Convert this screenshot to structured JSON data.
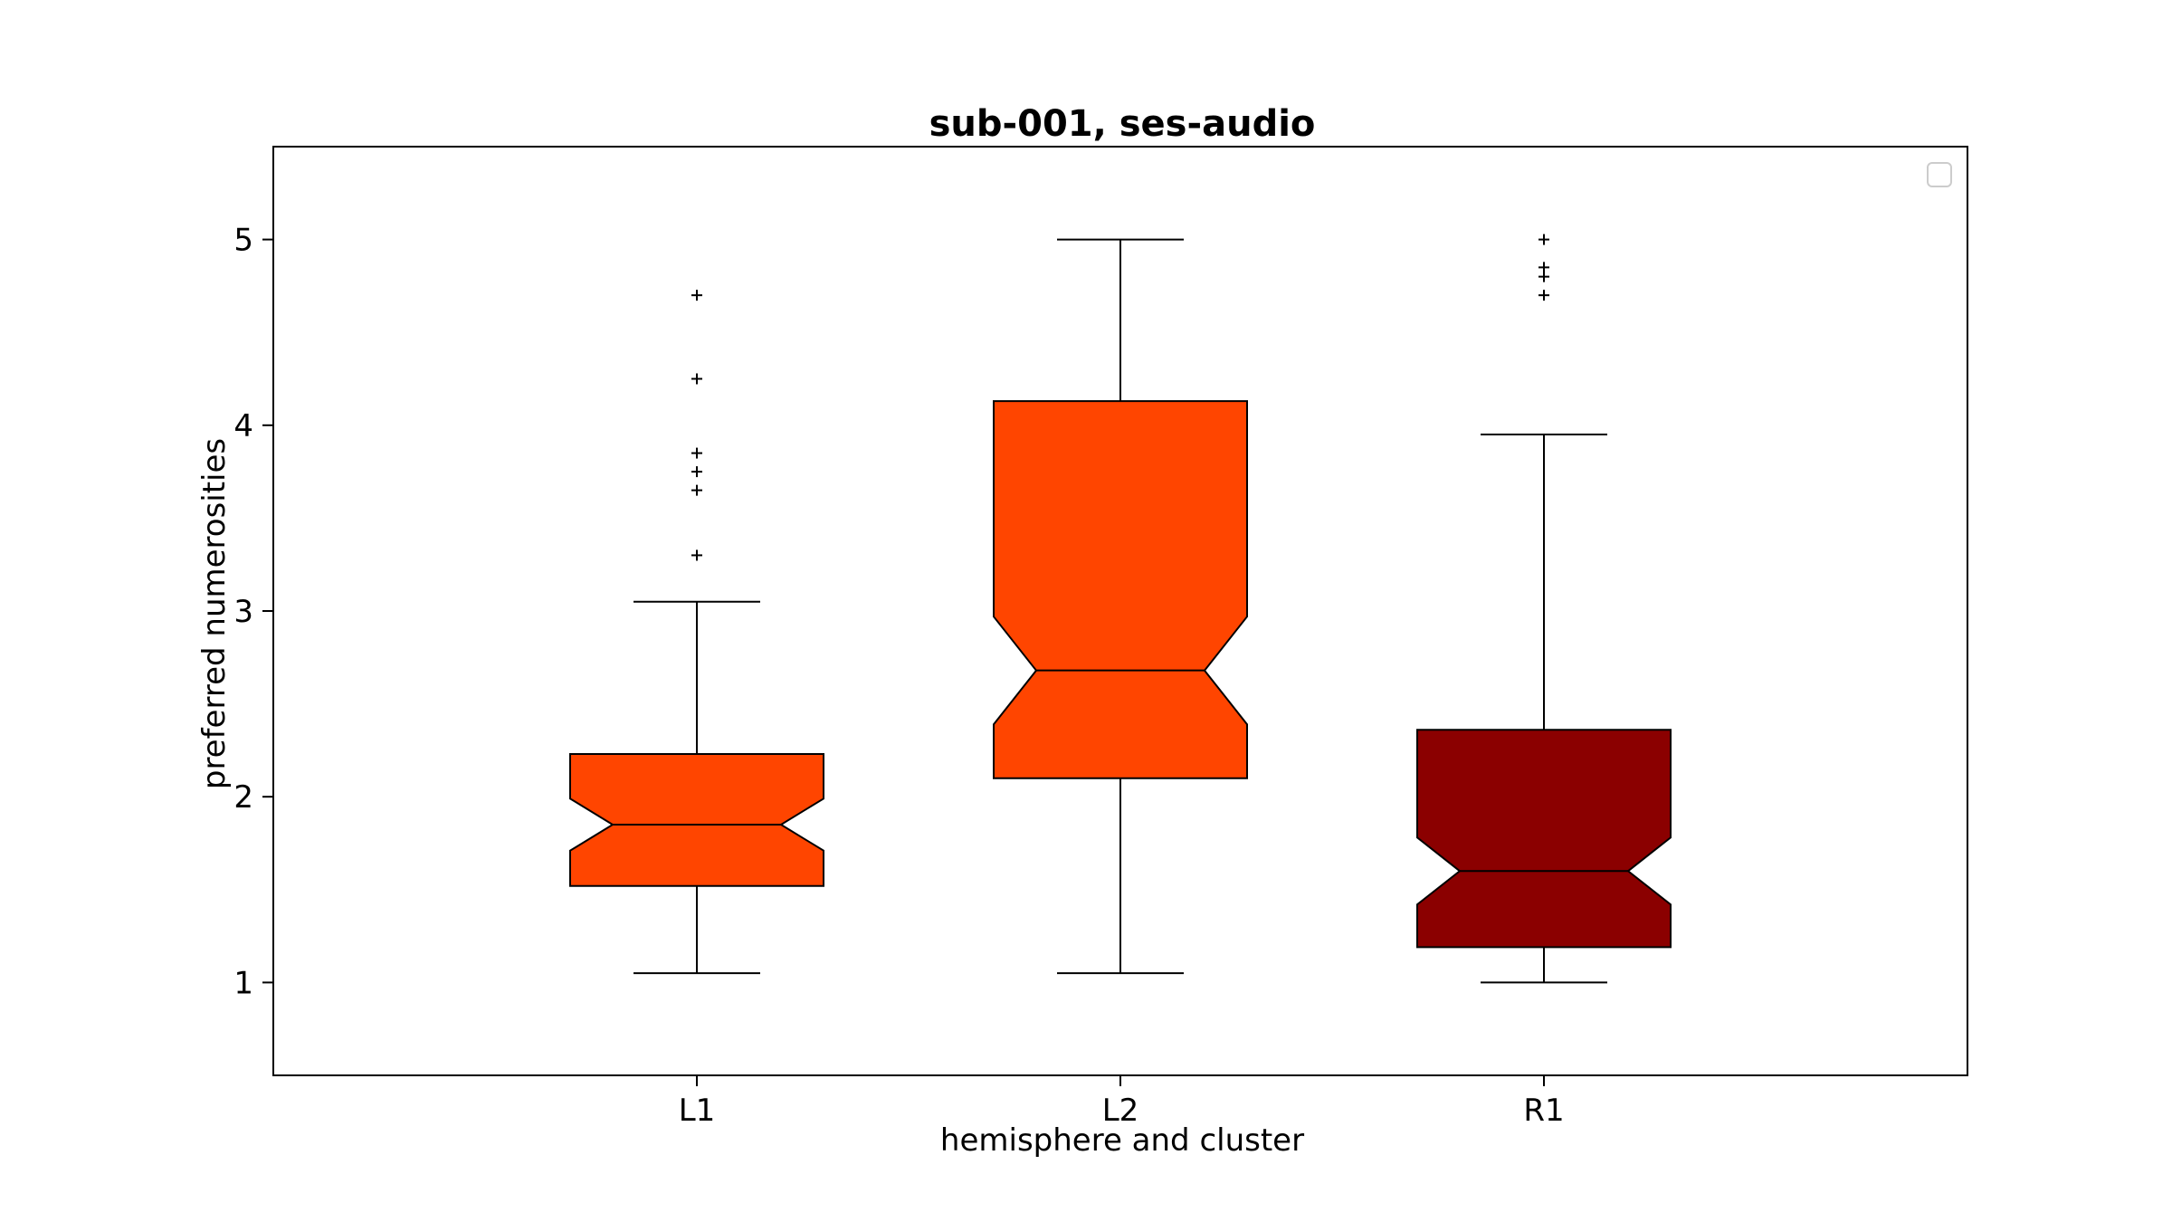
{
  "chart_data": {
    "type": "boxplot",
    "title": "sub-001, ses-audio",
    "xlabel": "hemisphere and cluster",
    "ylabel": "preferred numerosities",
    "categories": [
      "L1",
      "L2",
      "R1"
    ],
    "ylim": [
      0.5,
      5.5
    ],
    "yticks": [
      1,
      2,
      3,
      4,
      5
    ],
    "yticklabels": [
      "1",
      "2",
      "3",
      "4",
      "5"
    ],
    "notched": true,
    "grid": false,
    "legend": {
      "position": "top-right",
      "entries": []
    },
    "boxes": [
      {
        "label": "L1",
        "color": "#ff4500",
        "whisker_low": 1.05,
        "q1": 1.52,
        "notch_low": 1.71,
        "median": 1.85,
        "notch_high": 1.99,
        "q3": 2.23,
        "whisker_high": 3.05,
        "outliers": [
          3.3,
          3.65,
          3.75,
          3.85,
          4.25,
          4.7
        ]
      },
      {
        "label": "L2",
        "color": "#ff4500",
        "whisker_low": 1.05,
        "q1": 2.1,
        "notch_low": 2.39,
        "median": 2.68,
        "notch_high": 2.97,
        "q3": 4.13,
        "whisker_high": 5.0,
        "outliers": []
      },
      {
        "label": "R1",
        "color": "#8b0000",
        "whisker_low": 1.0,
        "q1": 1.19,
        "notch_low": 1.42,
        "median": 1.6,
        "notch_high": 1.78,
        "q3": 2.36,
        "whisker_high": 3.95,
        "outliers": [
          4.7,
          4.8,
          4.85,
          5.0
        ]
      }
    ]
  }
}
